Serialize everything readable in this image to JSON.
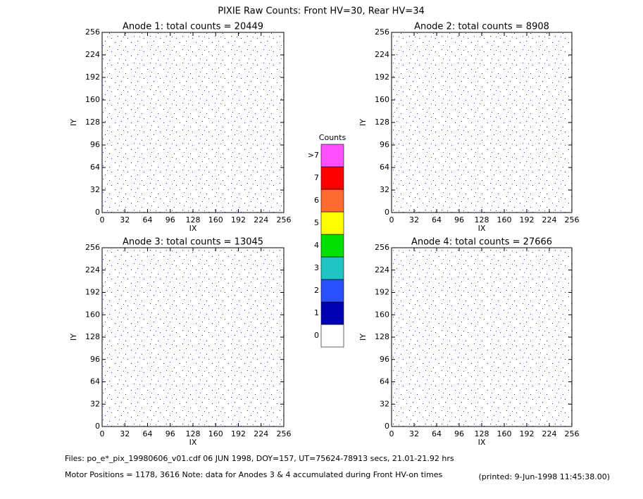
{
  "title": "PIXIE Raw Counts:  Front HV=30, Rear HV=34",
  "chart_data": [
    {
      "type": "heatmap",
      "title": "Anode 1: total counts = 20449",
      "xlabel": "IX",
      "ylabel": "IY",
      "xlim": [
        0,
        256
      ],
      "ylim": [
        0,
        256
      ],
      "xticks": [
        0,
        32,
        64,
        96,
        128,
        160,
        192,
        224,
        256
      ],
      "yticks": [
        0,
        32,
        64,
        96,
        128,
        160,
        192,
        224,
        256
      ]
    },
    {
      "type": "heatmap",
      "title": "Anode 2: total counts = 8908",
      "xlabel": "IX",
      "ylabel": "IY",
      "xlim": [
        0,
        256
      ],
      "ylim": [
        0,
        256
      ],
      "xticks": [
        0,
        32,
        64,
        96,
        128,
        160,
        192,
        224,
        256
      ],
      "yticks": [
        0,
        32,
        64,
        96,
        128,
        160,
        192,
        224,
        256
      ]
    },
    {
      "type": "heatmap",
      "title": "Anode 3: total counts = 13045",
      "xlabel": "IX",
      "ylabel": "IY",
      "xlim": [
        0,
        256
      ],
      "ylim": [
        0,
        256
      ],
      "xticks": [
        0,
        32,
        64,
        96,
        128,
        160,
        192,
        224,
        256
      ],
      "yticks": [
        0,
        32,
        64,
        96,
        128,
        160,
        192,
        224,
        256
      ]
    },
    {
      "type": "heatmap",
      "title": "Anode 4: total counts = 27666",
      "xlabel": "IX",
      "ylabel": "IY",
      "xlim": [
        0,
        256
      ],
      "ylim": [
        0,
        256
      ],
      "xticks": [
        0,
        32,
        64,
        96,
        128,
        160,
        192,
        224,
        256
      ],
      "yticks": [
        0,
        32,
        64,
        96,
        128,
        160,
        192,
        224,
        256
      ]
    }
  ],
  "colorbar": {
    "title": "Counts",
    "ticks": [
      0,
      1,
      2,
      3,
      4,
      5,
      6,
      7,
      {
        "value": 8,
        "label": ">7"
      }
    ],
    "colors": [
      "#ffffff",
      "#0000b4",
      "#2850ff",
      "#20c4c4",
      "#00e000",
      "#ffff00",
      "#ff6a30",
      "#ff0000",
      "#ff50ff"
    ]
  },
  "footer": {
    "files": "Files: po_e*_pix_19980606_v01.cdf    06 JUN 1998, DOY=157, UT=75624-78913 secs, 21.01-21.92 hrs",
    "motor": "Motor Positions = 1178, 3616    Note: data for Anodes 3 & 4 accumulated during Front HV-on times",
    "printed": "(printed:  9-Jun-1998 11:45:38.00)"
  }
}
